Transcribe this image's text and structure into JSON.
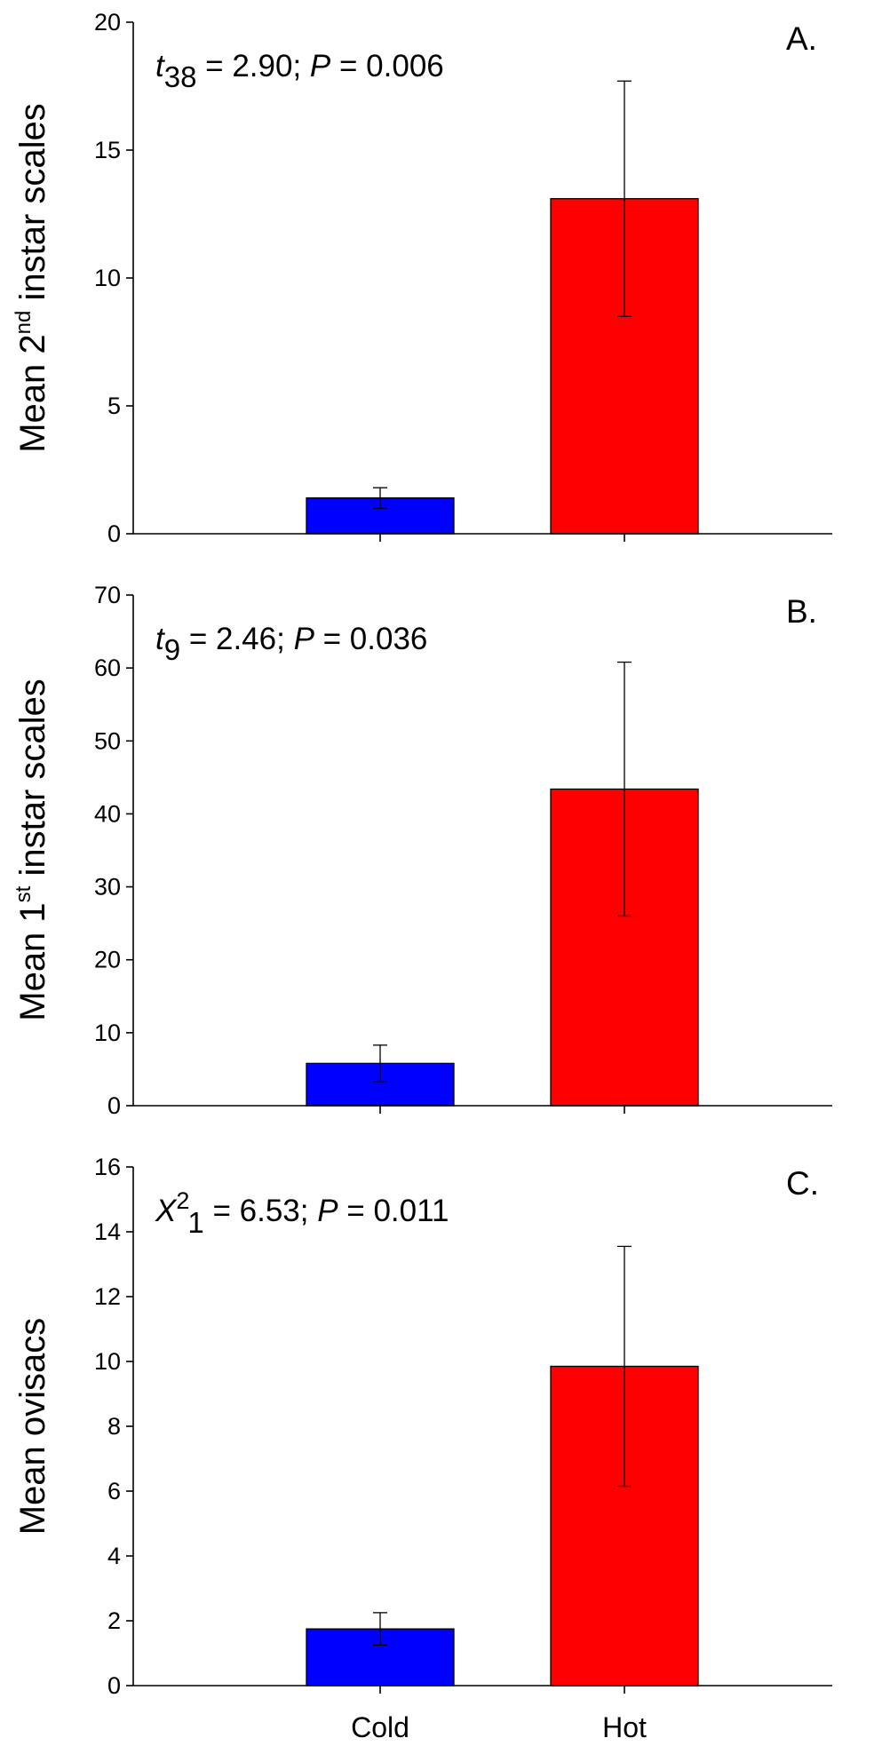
{
  "chart_data": [
    {
      "type": "bar",
      "panel_label": "A.",
      "categories": [
        "Cold",
        "Hot"
      ],
      "values": [
        1.4,
        13.1
      ],
      "error": [
        0.4,
        4.6
      ],
      "colors": [
        "#0000ff",
        "#ff0000"
      ],
      "ylabel": {
        "pre": "Mean 2",
        "sup": "nd",
        "post": " instar scales"
      },
      "ylim": [
        0,
        20
      ],
      "yticks": [
        0,
        5,
        10,
        15,
        20
      ],
      "annotation": {
        "italic": "t",
        "sub": "38",
        "mid": " = 2.90; ",
        "italic2": "P",
        "end": " = 0.006"
      }
    },
    {
      "type": "bar",
      "panel_label": "B.",
      "categories": [
        "Cold",
        "Hot"
      ],
      "values": [
        5.8,
        43.4
      ],
      "error": [
        2.5,
        17.4
      ],
      "colors": [
        "#0000ff",
        "#ff0000"
      ],
      "ylabel": {
        "pre": "Mean 1",
        "sup": "st",
        "post": " instar scales"
      },
      "ylim": [
        0,
        70
      ],
      "yticks": [
        0,
        10,
        20,
        30,
        40,
        50,
        60,
        70
      ],
      "annotation": {
        "italic": "t",
        "sub": "9",
        "mid": " = 2.46; ",
        "italic2": "P",
        "end": " = 0.036"
      }
    },
    {
      "type": "bar",
      "panel_label": "C.",
      "categories": [
        "Cold",
        "Hot"
      ],
      "values": [
        1.75,
        9.85
      ],
      "error": [
        0.5,
        3.7
      ],
      "colors": [
        "#0000ff",
        "#ff0000"
      ],
      "ylabel": {
        "pre": "Mean ovisacs",
        "sup": "",
        "post": ""
      },
      "ylim": [
        0,
        16
      ],
      "yticks": [
        0,
        2,
        4,
        6,
        8,
        10,
        12,
        14,
        16
      ],
      "annotation": {
        "italic": "X",
        "sup": "2",
        "sub": "1",
        "mid": " = 6.53; ",
        "italic2": "P",
        "end": " = 0.011"
      }
    }
  ]
}
